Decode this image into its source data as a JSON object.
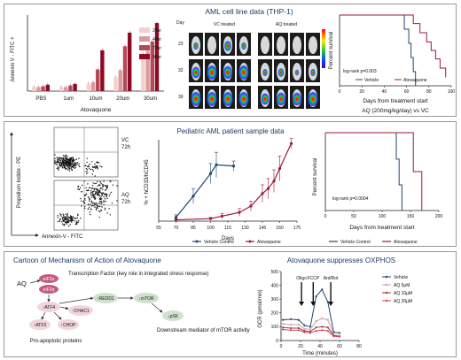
{
  "panel_a": {
    "bar_chart": {
      "ylabel": "Annexin V - FITC +",
      "xlabel": "Atovaquone",
      "categories": [
        "PBS",
        "1um",
        "10um",
        "20um",
        "30um"
      ],
      "legend": [
        "24hr",
        "48hr",
        "72hr",
        "96hr"
      ],
      "colors": [
        "#f3cfcf",
        "#dc9a9a",
        "#b44a58",
        "#8e0a22"
      ]
    },
    "imaging": {
      "title": "AML cell line data (THP-1)",
      "day_label": "Day",
      "days": [
        "23",
        "32",
        "39"
      ],
      "groups": [
        "VC treated",
        "AQ treated"
      ]
    },
    "survival": {
      "ylabel": "Percent survival",
      "xlabel": "Days from treatment start",
      "logrank": "log-rank p=0.003",
      "legend": [
        "Vehicle",
        "Atovaquone"
      ],
      "note": "AQ (200mg/kg/day) vs VC",
      "x_ticks": [
        "0",
        "20",
        "40",
        "60",
        "80",
        "100"
      ]
    }
  },
  "panel_b": {
    "flow": {
      "ylabel": "Propidium Iodide - PE",
      "xlabel": "Annexin-V - FITC",
      "plots": [
        {
          "group": "VC",
          "time": "72h"
        },
        {
          "group": "AQ",
          "time": "72h"
        }
      ]
    },
    "line_chart": {
      "title": "Pediatric AML patient sample data",
      "ylabel": "% + hCD33/hCD45",
      "xlabel": "Days",
      "x_ticks": [
        "55",
        "70",
        "85",
        "100",
        "115",
        "130",
        "145",
        "160",
        "175"
      ],
      "legend": [
        "Vehicle Control",
        "Atovaquone"
      ]
    },
    "survival": {
      "ylabel": "Percent survival",
      "xlabel": "Days from treatment start",
      "logrank": "log-rank p=0.0004",
      "x_ticks": [
        "0",
        "50",
        "100",
        "150",
        "200"
      ],
      "legend": [
        "Vehicle Control",
        "Atovaquone"
      ]
    }
  },
  "panel_c": {
    "mechanism": {
      "title": "Cartoon of Mechanism of Action of Atovaquone",
      "aq": "AQ",
      "eif1": "eIF2α",
      "eif2": "eIF2α",
      "tf_text": "Transcription Factor (key role in integrated stress response)",
      "atf4": "↑ATF4",
      "chac1": "↑CHAC1",
      "redd1": "↑REDD1",
      "atf3": "↑ATF3",
      "chop": "↑CHOP",
      "mtor": "↓mTOR",
      "ps6": "↓pS6",
      "downstream": "Downstream mediator of mTOR activity",
      "pro": "Pro-apoptotic proteins"
    },
    "oxphos": {
      "title": "Atovaquone suppresses OXPHOS",
      "ylabel": "OCR (pmol/min)",
      "xlabel": "Time (minutes)",
      "y_ticks": [
        "0",
        "100",
        "200",
        "300",
        "400",
        "500"
      ],
      "x_ticks": [
        "0",
        "20",
        "40",
        "60",
        "80"
      ],
      "arrows": [
        "Oligo",
        "FCCP",
        "Ant/Rot"
      ],
      "legend": [
        "Vehicle",
        "AQ 5μM",
        "AQ 10μM",
        "AQ 20μM"
      ],
      "colors": [
        "#23456e",
        "#c7a2a8",
        "#9e3a48",
        "#d24a5a"
      ]
    }
  },
  "chart_data": [
    {
      "type": "bar",
      "ylabel": "Annexin V - FITC +",
      "xlabel": "Atovaquone",
      "categories": [
        "PBS",
        "1um",
        "10um",
        "20um",
        "30um"
      ],
      "series": [
        {
          "name": "24hr",
          "values": [
            5,
            5,
            9,
            17,
            46
          ]
        },
        {
          "name": "48hr",
          "values": [
            5,
            5,
            11,
            26,
            50
          ]
        },
        {
          "name": "72hr",
          "values": [
            6,
            7,
            27,
            56,
            62
          ]
        },
        {
          "name": "96hr",
          "values": [
            8,
            9,
            51,
            73,
            85
          ]
        }
      ],
      "ylim": [
        0,
        95
      ]
    },
    {
      "type": "line",
      "ylabel": "Percent survival",
      "xlabel": "Days from treatment start",
      "xlim": [
        0,
        100
      ],
      "ylim": [
        0,
        100
      ],
      "series": [
        {
          "name": "Vehicle",
          "x": [
            0,
            58,
            58,
            62,
            62,
            64,
            64,
            66,
            66,
            68,
            68
          ],
          "y": [
            100,
            100,
            80,
            80,
            60,
            60,
            40,
            40,
            20,
            20,
            0
          ]
        },
        {
          "name": "Atovaquone",
          "x": [
            0,
            66,
            66,
            72,
            72,
            78,
            78,
            82,
            82,
            86,
            86,
            90,
            90,
            95,
            95
          ],
          "y": [
            100,
            100,
            88,
            88,
            75,
            75,
            62,
            62,
            50,
            50,
            38,
            38,
            25,
            25,
            12
          ]
        }
      ]
    },
    {
      "type": "line",
      "ylabel": "% + hCD33/hCD45",
      "xlabel": "Days",
      "xlim": [
        55,
        175
      ],
      "ylim": [
        0,
        65
      ],
      "series": [
        {
          "name": "Vehicle Control",
          "x": [
            70,
            85,
            100,
            105,
            120
          ],
          "y": [
            3,
            20,
            38,
            45,
            44
          ],
          "err": [
            2,
            6,
            8,
            10,
            4
          ]
        },
        {
          "name": "Atovaquone",
          "x": [
            70,
            100,
            110,
            125,
            135,
            145,
            150,
            155,
            160,
            170
          ],
          "y": [
            1,
            2,
            4,
            7,
            12,
            22,
            26,
            32,
            42,
            62
          ],
          "err": [
            1,
            1,
            2,
            3,
            4,
            7,
            8,
            9,
            10,
            4
          ]
        }
      ]
    },
    {
      "type": "line",
      "ylabel": "Percent survival",
      "xlabel": "Days from treatment start",
      "xlim": [
        0,
        200
      ],
      "ylim": [
        0,
        100
      ],
      "series": [
        {
          "name": "Vehicle Control",
          "x": [
            0,
            125,
            125,
            130,
            130,
            135,
            135
          ],
          "y": [
            100,
            100,
            66,
            66,
            33,
            33,
            0
          ]
        },
        {
          "name": "Atovaquone",
          "x": [
            0,
            155,
            155,
            170,
            170
          ],
          "y": [
            100,
            100,
            50,
            50,
            0
          ]
        }
      ]
    },
    {
      "type": "line",
      "ylabel": "OCR (pmol/min)",
      "xlabel": "Time (minutes)",
      "xlim": [
        0,
        80
      ],
      "ylim": [
        0,
        500
      ],
      "series": [
        {
          "name": "Vehicle",
          "x": [
            2,
            10,
            18,
            24,
            30,
            36,
            42,
            48,
            54,
            60
          ],
          "y": [
            150,
            155,
            150,
            110,
            100,
            320,
            370,
            280,
            60,
            55
          ]
        },
        {
          "name": "AQ 5μM",
          "x": [
            2,
            10,
            18,
            24,
            30,
            36,
            42,
            48,
            54,
            60
          ],
          "y": [
            120,
            115,
            115,
            85,
            80,
            140,
            160,
            150,
            40,
            35
          ]
        },
        {
          "name": "AQ 10μM",
          "x": [
            2,
            10,
            18,
            24,
            30,
            36,
            42,
            48,
            54,
            60
          ],
          "y": [
            95,
            90,
            90,
            70,
            65,
            95,
            100,
            95,
            35,
            30
          ]
        },
        {
          "name": "AQ 20μM",
          "x": [
            2,
            10,
            18,
            24,
            30,
            36,
            42,
            48,
            54,
            60
          ],
          "y": [
            80,
            75,
            75,
            60,
            55,
            70,
            75,
            70,
            30,
            28
          ]
        }
      ]
    }
  ]
}
